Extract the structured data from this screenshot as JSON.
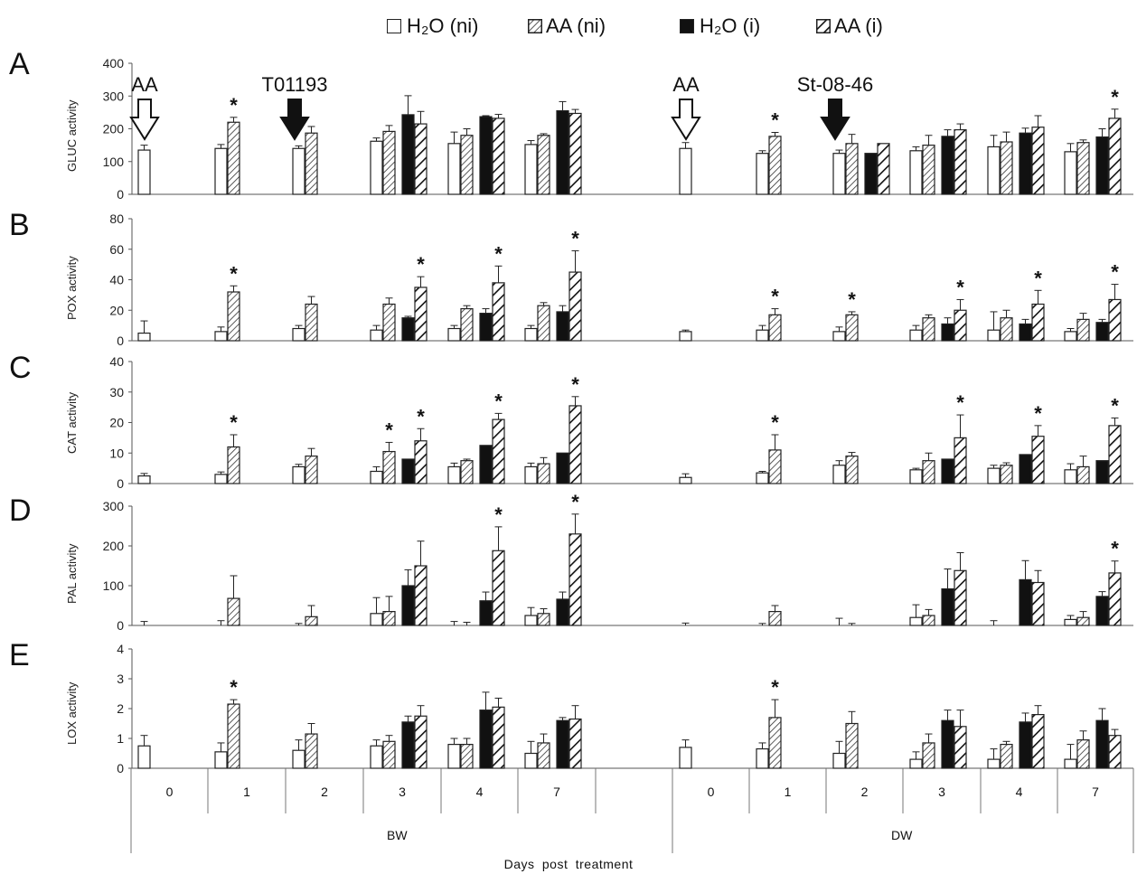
{
  "legend": [
    {
      "label": "H₂O (ni)",
      "style": "white"
    },
    {
      "label": "AA (ni)",
      "style": "hatch-light"
    },
    {
      "label": "H₂O (i)",
      "style": "black"
    },
    {
      "label": "AA (i)",
      "style": "hatch-bold"
    }
  ],
  "xtitle": "Days post treatment",
  "groups": [
    "BW",
    "DW"
  ],
  "days": [
    "0",
    "1",
    "2",
    "3",
    "4",
    "7"
  ],
  "annotations": [
    {
      "panel": "A",
      "text": "AA",
      "arrow": "open",
      "group": "BW",
      "day": "0"
    },
    {
      "panel": "A",
      "text": "T01193",
      "arrow": "filled",
      "group": "BW",
      "day": "2"
    },
    {
      "panel": "A",
      "text": "AA",
      "arrow": "open",
      "group": "DW",
      "day": "0"
    },
    {
      "panel": "A",
      "text": "St-08-46",
      "arrow": "filled",
      "group": "DW",
      "day": "2"
    }
  ],
  "colors": {
    "white": "#ffffff",
    "black": "#111111",
    "stroke": "#222222"
  },
  "chart_data": [
    {
      "type": "bar",
      "panel": "A",
      "ylabel": "GLUC activity",
      "ylim": [
        0,
        400
      ],
      "yticks": [
        0,
        100,
        200,
        300,
        400
      ],
      "categories": [
        "BW 0",
        "BW 1",
        "BW 2",
        "BW 3",
        "BW 4",
        "BW 7",
        "DW 0",
        "DW 1",
        "DW 2",
        "DW 3",
        "DW 4",
        "DW 7"
      ],
      "series": [
        {
          "name": "H2O (ni)",
          "values": [
            135,
            140,
            140,
            162,
            155,
            152,
            140,
            125,
            125,
            133,
            145,
            130
          ],
          "errors": [
            15,
            12,
            8,
            10,
            35,
            12,
            18,
            8,
            10,
            12,
            35,
            25
          ]
        },
        {
          "name": "AA (ni)",
          "values": [
            null,
            220,
            187,
            192,
            180,
            180,
            null,
            177,
            155,
            150,
            160,
            158
          ],
          "errors": [
            null,
            15,
            20,
            18,
            20,
            5,
            null,
            12,
            28,
            30,
            30,
            8
          ]
        },
        {
          "name": "H2O (i)",
          "values": [
            null,
            null,
            null,
            243,
            237,
            255,
            null,
            null,
            125,
            177,
            187,
            175
          ],
          "errors": [
            null,
            null,
            null,
            58,
            3,
            28,
            null,
            null,
            null,
            20,
            15,
            25
          ]
        },
        {
          "name": "AA (i)",
          "values": [
            null,
            null,
            null,
            215,
            232,
            247,
            null,
            null,
            155,
            197,
            205,
            232
          ],
          "errors": [
            null,
            null,
            null,
            38,
            12,
            12,
            null,
            null,
            null,
            18,
            35,
            28
          ]
        }
      ],
      "significance": [
        {
          "category": "BW 1",
          "series": "AA (ni)"
        },
        {
          "category": "DW 1",
          "series": "AA (ni)"
        },
        {
          "category": "DW 7",
          "series": "AA (i)"
        }
      ]
    },
    {
      "type": "bar",
      "panel": "B",
      "ylabel": "POX activity",
      "ylim": [
        0,
        80
      ],
      "yticks": [
        0,
        20,
        40,
        60,
        80
      ],
      "categories": [
        "BW 0",
        "BW 1",
        "BW 2",
        "BW 3",
        "BW 4",
        "BW 7",
        "DW 0",
        "DW 1",
        "DW 2",
        "DW 3",
        "DW 4",
        "DW 7"
      ],
      "series": [
        {
          "name": "H2O (ni)",
          "values": [
            5,
            6,
            8,
            7,
            8,
            8,
            6,
            7,
            6,
            7,
            7,
            6
          ],
          "errors": [
            8,
            3,
            2,
            3,
            2,
            2,
            1,
            3,
            3,
            3,
            12,
            2
          ]
        },
        {
          "name": "AA (ni)",
          "values": [
            null,
            32,
            24,
            24,
            21,
            23,
            null,
            17,
            17,
            15,
            15,
            14
          ],
          "errors": [
            null,
            4,
            5,
            4,
            2,
            2,
            null,
            4,
            2,
            2,
            5,
            4
          ]
        },
        {
          "name": "H2O (i)",
          "values": [
            null,
            null,
            null,
            15,
            18,
            19,
            null,
            null,
            null,
            11,
            11,
            12
          ],
          "errors": [
            null,
            null,
            null,
            1,
            3,
            4,
            null,
            null,
            null,
            4,
            3,
            2
          ]
        },
        {
          "name": "AA (i)",
          "values": [
            null,
            null,
            null,
            35,
            38,
            45,
            null,
            null,
            null,
            20,
            24,
            27
          ],
          "errors": [
            null,
            null,
            null,
            7,
            11,
            14,
            null,
            null,
            null,
            7,
            9,
            10
          ]
        }
      ],
      "significance": [
        {
          "category": "BW 1",
          "series": "AA (ni)"
        },
        {
          "category": "BW 3",
          "series": "AA (i)"
        },
        {
          "category": "BW 4",
          "series": "AA (i)"
        },
        {
          "category": "BW 7",
          "series": "AA (i)"
        },
        {
          "category": "DW 1",
          "series": "AA (ni)"
        },
        {
          "category": "DW 2",
          "series": "AA (ni)"
        },
        {
          "category": "DW 3",
          "series": "AA (i)"
        },
        {
          "category": "DW 4",
          "series": "AA (i)"
        },
        {
          "category": "DW 7",
          "series": "AA (i)"
        }
      ]
    },
    {
      "type": "bar",
      "panel": "C",
      "ylabel": "CAT activity",
      "ylim": [
        0,
        40
      ],
      "yticks": [
        0,
        10,
        20,
        30,
        40
      ],
      "categories": [
        "BW 0",
        "BW 1",
        "BW 2",
        "BW 3",
        "BW 4",
        "BW 7",
        "DW 0",
        "DW 1",
        "DW 2",
        "DW 3",
        "DW 4",
        "DW 7"
      ],
      "series": [
        {
          "name": "H2O (ni)",
          "values": [
            2.5,
            3,
            5.5,
            4,
            5.5,
            5.5,
            2,
            3.5,
            6,
            4.5,
            5,
            4.5
          ],
          "errors": [
            0.8,
            0.8,
            0.8,
            1.5,
            1.2,
            1.2,
            1.2,
            0.5,
            1.5,
            0.5,
            1,
            2
          ]
        },
        {
          "name": "AA (ni)",
          "values": [
            null,
            12,
            9,
            10.5,
            7.5,
            6.5,
            null,
            11,
            9,
            7.5,
            6,
            5.5
          ],
          "errors": [
            null,
            4,
            2.5,
            3,
            0.5,
            2,
            null,
            5,
            1.2,
            2.5,
            0.8,
            3.5
          ]
        },
        {
          "name": "H2O (i)",
          "values": [
            null,
            null,
            null,
            8,
            12.5,
            10,
            null,
            null,
            null,
            8,
            9.5,
            7.5
          ]
        },
        {
          "name": "AA (i)",
          "values": [
            null,
            null,
            null,
            14,
            21,
            25.5,
            null,
            null,
            null,
            15,
            15.5,
            19
          ],
          "errors": [
            null,
            null,
            null,
            4,
            2,
            3,
            null,
            null,
            null,
            7.5,
            3.5,
            2.5
          ]
        }
      ],
      "significance": [
        {
          "category": "BW 1",
          "series": "AA (ni)"
        },
        {
          "category": "BW 3",
          "series": "AA (ni)"
        },
        {
          "category": "BW 3",
          "series": "AA (i)"
        },
        {
          "category": "BW 4",
          "series": "AA (i)"
        },
        {
          "category": "BW 7",
          "series": "AA (i)"
        },
        {
          "category": "DW 1",
          "series": "AA (ni)"
        },
        {
          "category": "DW 3",
          "series": "AA (i)"
        },
        {
          "category": "DW 4",
          "series": "AA (i)"
        },
        {
          "category": "DW 7",
          "series": "AA (i)"
        }
      ]
    },
    {
      "type": "bar",
      "panel": "D",
      "ylabel": "PAL activity",
      "ylim": [
        0,
        300
      ],
      "yticks": [
        0,
        100,
        200,
        300
      ],
      "categories": [
        "BW 0",
        "BW 1",
        "BW 2",
        "BW 3",
        "BW 4",
        "BW 7",
        "DW 0",
        "DW 1",
        "DW 2",
        "DW 3",
        "DW 4",
        "DW 7"
      ],
      "series": [
        {
          "name": "H2O (ni)",
          "values": [
            0,
            0,
            0,
            30,
            0,
            25,
            0,
            0,
            0,
            20,
            0,
            15
          ],
          "errors": [
            10,
            12,
            5,
            40,
            10,
            20,
            6,
            5,
            18,
            32,
            12,
            10
          ]
        },
        {
          "name": "AA (ni)",
          "values": [
            null,
            68,
            22,
            35,
            0,
            30,
            null,
            35,
            0,
            25,
            null,
            20
          ],
          "errors": [
            null,
            57,
            28,
            38,
            8,
            12,
            null,
            15,
            5,
            15,
            null,
            15
          ]
        },
        {
          "name": "H2O (i)",
          "values": [
            null,
            null,
            null,
            100,
            62,
            66,
            null,
            null,
            null,
            92,
            115,
            73
          ],
          "errors": [
            null,
            null,
            null,
            40,
            22,
            18,
            null,
            null,
            null,
            50,
            48,
            12
          ]
        },
        {
          "name": "AA (i)",
          "values": [
            null,
            null,
            null,
            150,
            188,
            230,
            null,
            null,
            null,
            138,
            108,
            132
          ],
          "errors": [
            null,
            null,
            null,
            62,
            60,
            50,
            null,
            null,
            null,
            45,
            30,
            30
          ]
        }
      ],
      "significance": [
        {
          "category": "BW 4",
          "series": "AA (i)"
        },
        {
          "category": "BW 7",
          "series": "AA (i)"
        },
        {
          "category": "DW 7",
          "series": "AA (i)"
        }
      ]
    },
    {
      "type": "bar",
      "panel": "E",
      "ylabel": "LOX activity",
      "ylim": [
        0,
        4
      ],
      "yticks": [
        0,
        1,
        2,
        3,
        4
      ],
      "categories": [
        "BW 0",
        "BW 1",
        "BW 2",
        "BW 3",
        "BW 4",
        "BW 7",
        "DW 0",
        "DW 1",
        "DW 2",
        "DW 3",
        "DW 4",
        "DW 7"
      ],
      "series": [
        {
          "name": "H2O (ni)",
          "values": [
            0.75,
            0.55,
            0.6,
            0.75,
            0.8,
            0.5,
            0.7,
            0.65,
            0.5,
            0.3,
            0.3,
            0.3
          ],
          "errors": [
            0.35,
            0.3,
            0.35,
            0.2,
            0.2,
            0.4,
            0.25,
            0.2,
            0.4,
            0.25,
            0.35,
            0.5
          ]
        },
        {
          "name": "AA (ni)",
          "values": [
            null,
            2.15,
            1.15,
            0.9,
            0.8,
            0.85,
            null,
            1.7,
            1.5,
            0.85,
            0.8,
            0.95
          ],
          "errors": [
            null,
            0.15,
            0.35,
            0.2,
            0.2,
            0.3,
            null,
            0.6,
            0.4,
            0.3,
            0.1,
            0.3
          ]
        },
        {
          "name": "H2O (i)",
          "values": [
            null,
            null,
            null,
            1.55,
            1.95,
            1.6,
            null,
            null,
            null,
            1.6,
            1.55,
            1.6
          ],
          "errors": [
            null,
            null,
            null,
            0.2,
            0.6,
            0.1,
            null,
            null,
            null,
            0.35,
            0.3,
            0.4
          ]
        },
        {
          "name": "AA (i)",
          "values": [
            null,
            null,
            null,
            1.75,
            2.05,
            1.65,
            null,
            null,
            null,
            1.4,
            1.8,
            1.1
          ],
          "errors": [
            null,
            null,
            null,
            0.35,
            0.3,
            0.45,
            null,
            null,
            null,
            0.55,
            0.3,
            0.2
          ]
        }
      ],
      "significance": [
        {
          "category": "BW 1",
          "series": "AA (ni)"
        },
        {
          "category": "DW 1",
          "series": "AA (ni)"
        }
      ]
    }
  ]
}
